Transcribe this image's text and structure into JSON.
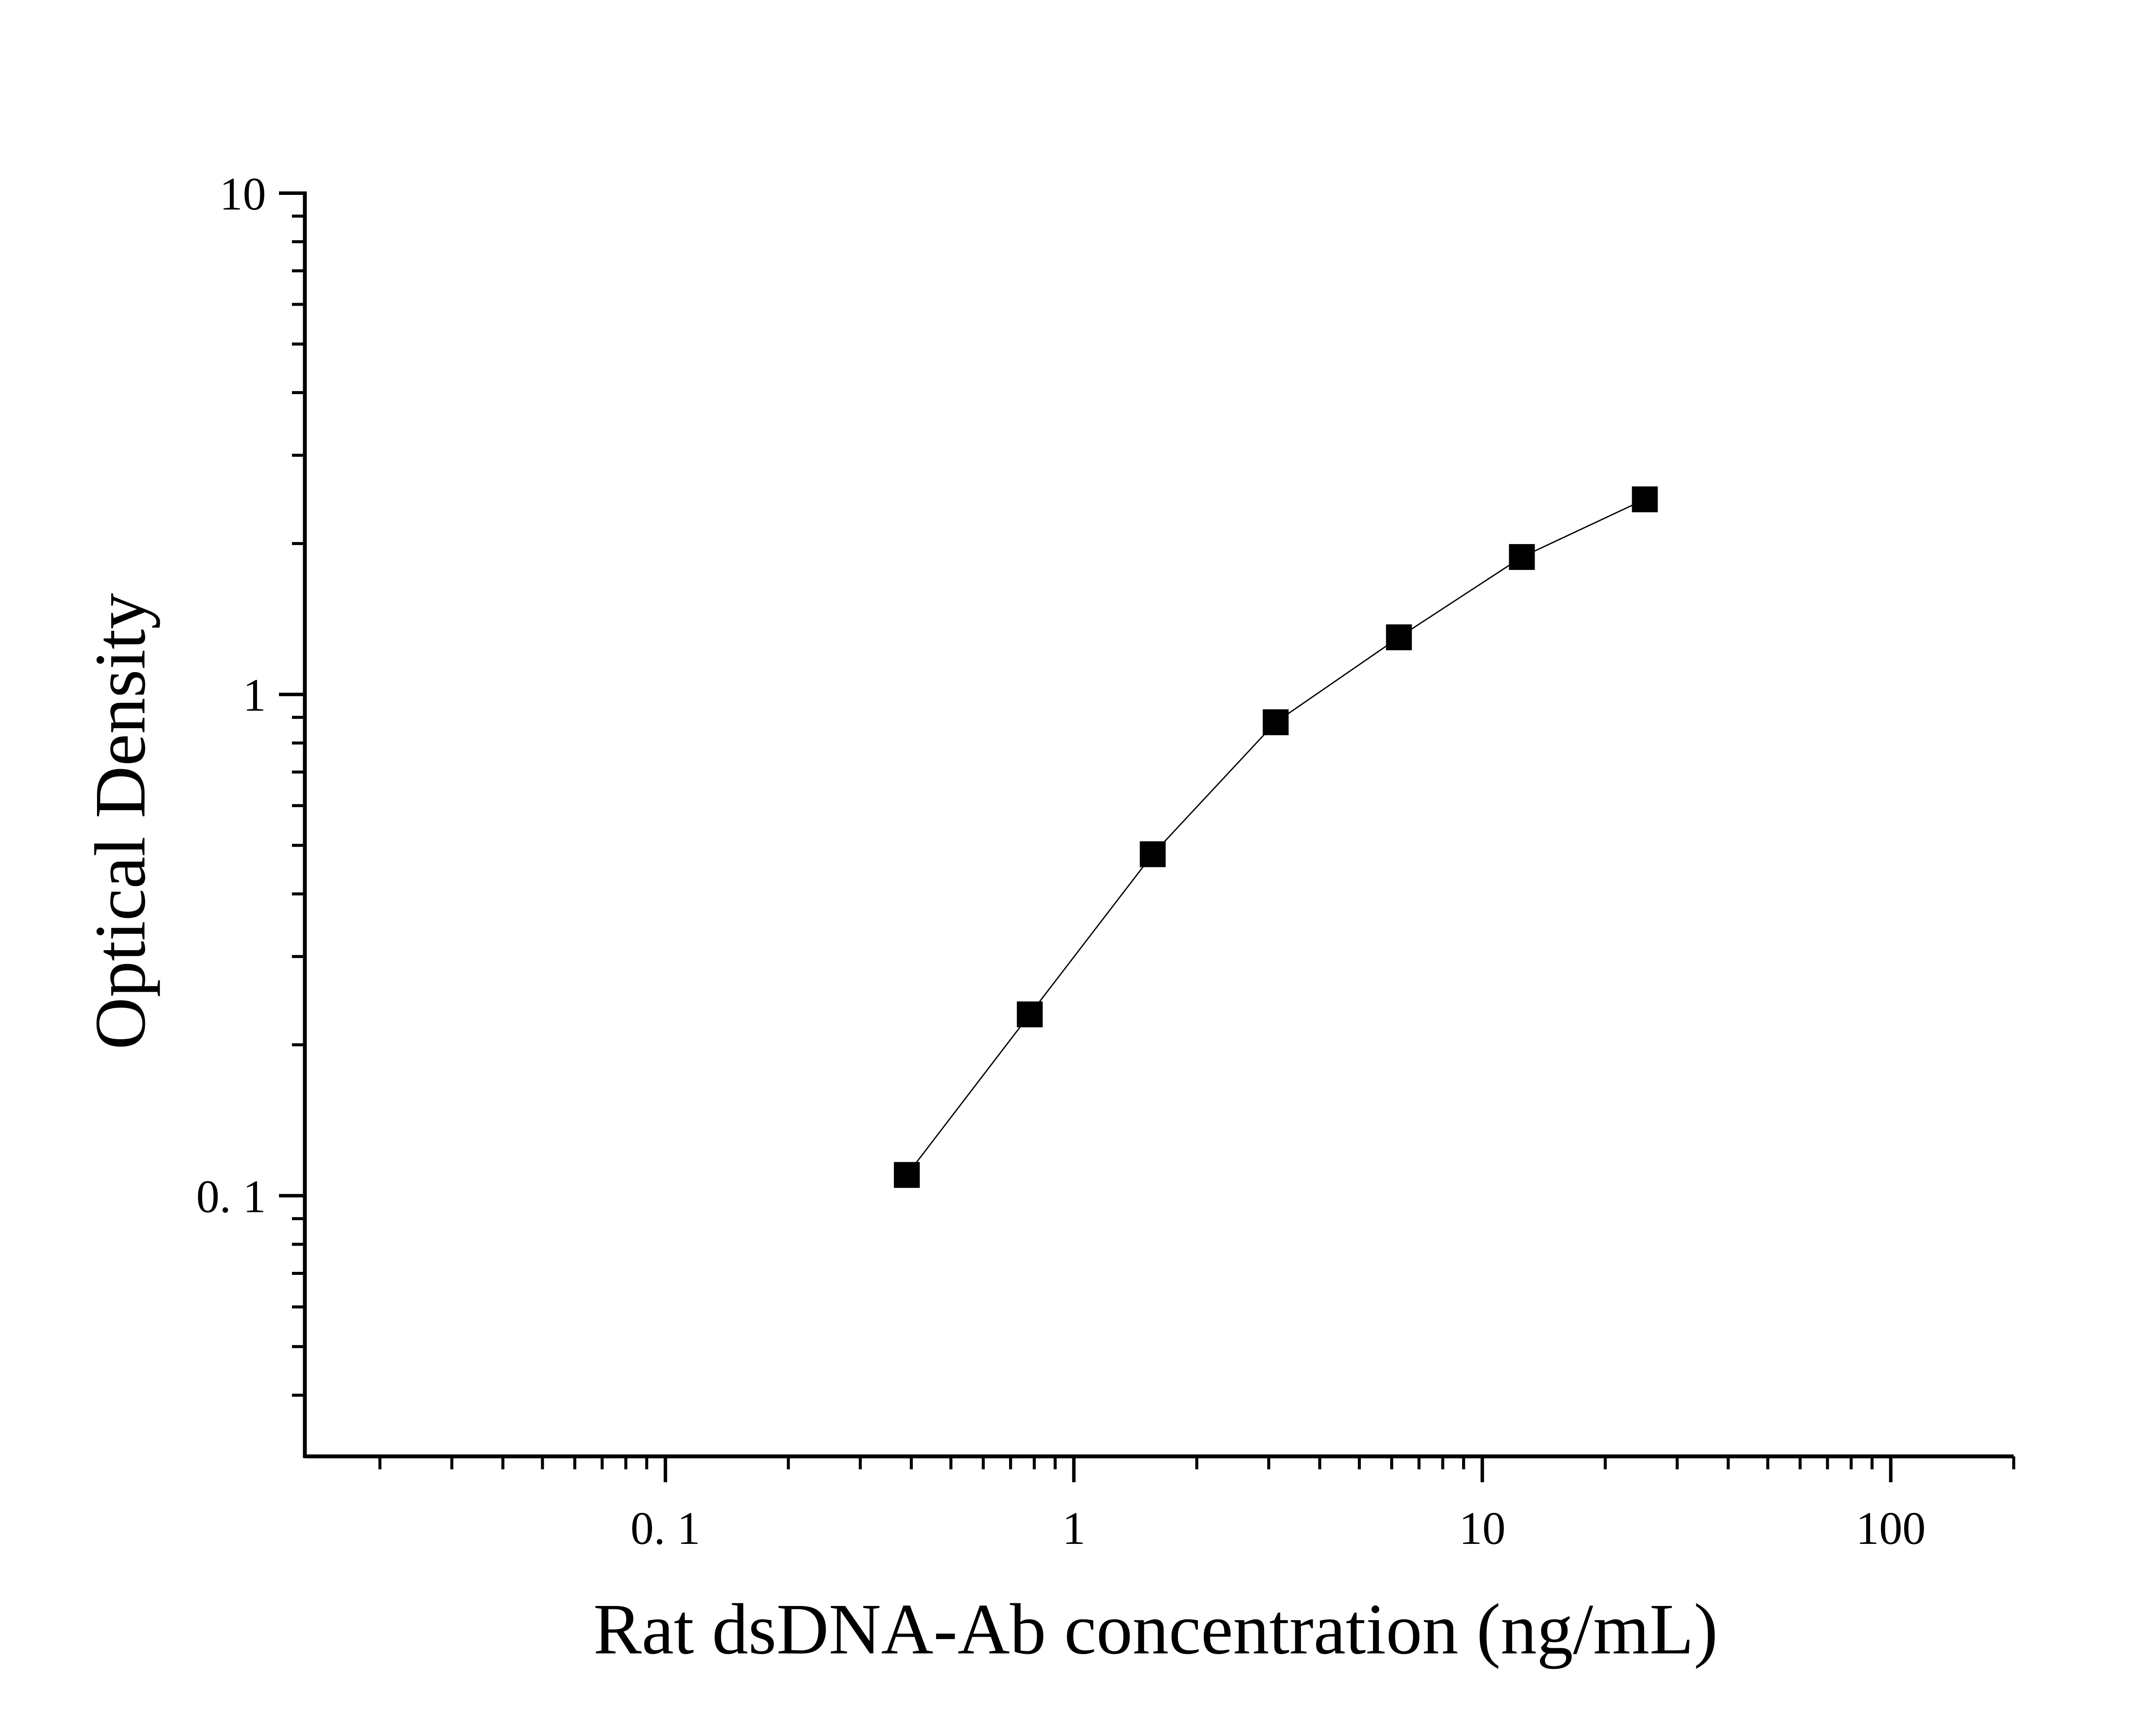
{
  "chart_data": {
    "type": "scatter",
    "title": "",
    "xlabel": "Rat dsDNA-Ab concentration (ng/mL)",
    "ylabel": "Optical Density",
    "x_scale": "log",
    "y_scale": "log",
    "xlim": [
      0.0131,
      200
    ],
    "ylim": [
      0.0302,
      10
    ],
    "x_ticks": [
      0.1,
      1,
      10,
      100
    ],
    "x_tick_labels": [
      "0. 1",
      "1",
      "10",
      "100"
    ],
    "y_ticks": [
      0.1,
      1,
      10
    ],
    "y_tick_labels": [
      "0. 1",
      "1",
      "10"
    ],
    "grid": false,
    "legend": "none",
    "marker": "square",
    "connected_line": true,
    "colors": {
      "marker": "#000000",
      "line": "#000000",
      "axis": "#000000"
    },
    "series": [
      {
        "x": [
          0.39,
          0.78,
          1.56,
          3.12,
          6.25,
          12.5,
          25
        ],
        "y": [
          0.11,
          0.23,
          0.48,
          0.88,
          1.3,
          1.88,
          2.45
        ]
      }
    ]
  }
}
